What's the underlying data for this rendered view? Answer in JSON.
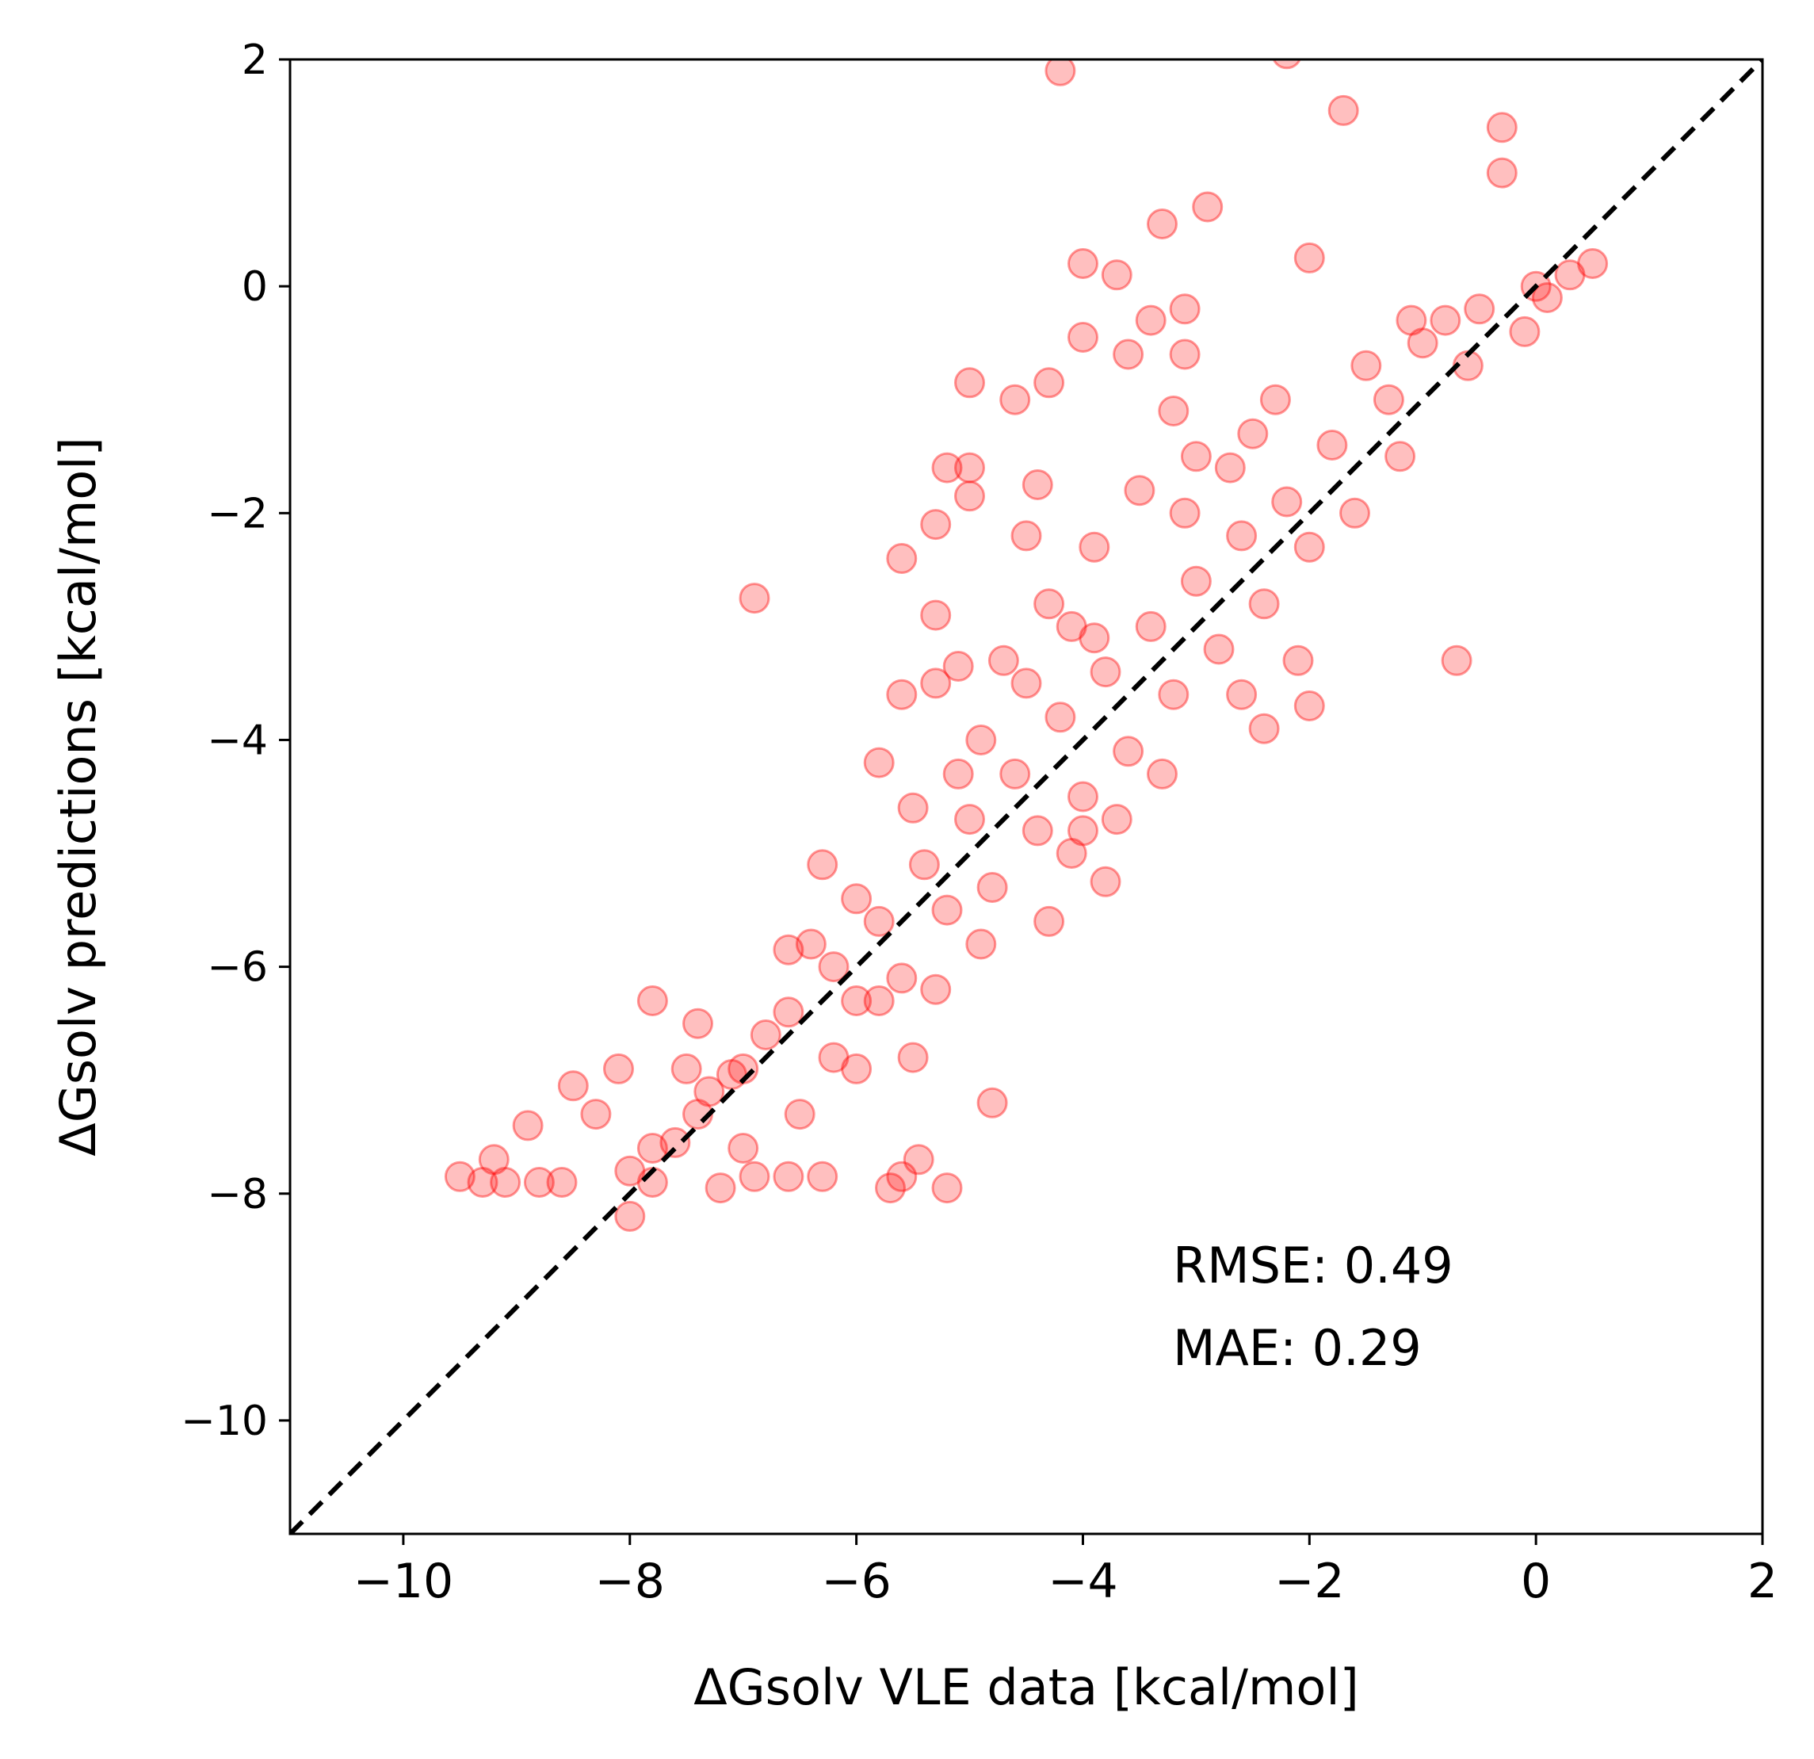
{
  "chart_data": {
    "type": "scatter",
    "title": "",
    "xlabel": "ΔGsolv VLE data [kcal/mol]",
    "ylabel": "ΔGsolv predictions [kcal/mol]",
    "xlim": [
      -11,
      2
    ],
    "ylim": [
      -11,
      2
    ],
    "xticks": [
      -10,
      -8,
      -6,
      -4,
      -2,
      0,
      2
    ],
    "yticks": [
      -10,
      -8,
      -6,
      -4,
      -2,
      0,
      2
    ],
    "xtick_labels": [
      "−10",
      "−8",
      "−6",
      "−4",
      "−2",
      "0",
      "2"
    ],
    "ytick_labels": [
      "−10",
      "−8",
      "−6",
      "−4",
      "−2",
      "0",
      "2"
    ],
    "grid": false,
    "reference_line": {
      "style": "dashed",
      "color": "#000000",
      "from": [
        -11,
        -11
      ],
      "to": [
        2,
        2
      ]
    },
    "marker_color": "#ff0000",
    "marker_alpha": 0.25,
    "annotations": {
      "rmse": "RMSE: 0.49",
      "mae": "MAE: 0.29"
    },
    "series": [
      {
        "name": "predictions",
        "points": [
          [
            -4.2,
            1.9
          ],
          [
            -2.2,
            2.05
          ],
          [
            -1.7,
            1.55
          ],
          [
            -0.3,
            1.4
          ],
          [
            -0.3,
            1.0
          ],
          [
            -3.3,
            0.55
          ],
          [
            -2.9,
            0.7
          ],
          [
            -2.0,
            0.25
          ],
          [
            -4.0,
            0.2
          ],
          [
            -3.7,
            0.1
          ],
          [
            -3.4,
            -0.3
          ],
          [
            -3.1,
            -0.2
          ],
          [
            -4.0,
            -0.45
          ],
          [
            -3.6,
            -0.6
          ],
          [
            -3.1,
            -0.6
          ],
          [
            -5.0,
            -0.85
          ],
          [
            -4.3,
            -0.85
          ],
          [
            -4.6,
            -1.0
          ],
          [
            -3.2,
            -1.1
          ],
          [
            -2.5,
            -1.3
          ],
          [
            -5.2,
            -1.6
          ],
          [
            -5.0,
            -1.6
          ],
          [
            -5.0,
            -1.85
          ],
          [
            -4.4,
            -1.75
          ],
          [
            -5.3,
            -2.1
          ],
          [
            -5.6,
            -2.4
          ],
          [
            -5.3,
            -2.9
          ],
          [
            -6.9,
            -2.75
          ],
          [
            -0.7,
            -3.3
          ],
          [
            -2.0,
            -3.7
          ],
          [
            -2.4,
            -3.9
          ],
          [
            -5.6,
            -3.6
          ],
          [
            -5.3,
            -3.5
          ],
          [
            -5.1,
            -3.35
          ],
          [
            -5.8,
            -4.2
          ],
          [
            -6.3,
            -5.1
          ],
          [
            -4.3,
            -5.6
          ],
          [
            -3.8,
            -5.25
          ],
          [
            -4.0,
            -4.8
          ],
          [
            -6.6,
            -5.85
          ],
          [
            -5.8,
            -6.3
          ],
          [
            -7.4,
            -6.5
          ],
          [
            -7.8,
            -6.3
          ],
          [
            -7.5,
            -6.9
          ],
          [
            -8.1,
            -6.9
          ],
          [
            -8.5,
            -7.05
          ],
          [
            -8.3,
            -7.3
          ],
          [
            -8.9,
            -7.4
          ],
          [
            -4.8,
            -7.2
          ],
          [
            -6.5,
            -7.3
          ],
          [
            -5.5,
            -6.8
          ],
          [
            -6.0,
            -6.9
          ],
          [
            -6.2,
            -6.8
          ],
          [
            -7.0,
            -7.6
          ],
          [
            -6.9,
            -7.85
          ],
          [
            -6.6,
            -7.85
          ],
          [
            -6.3,
            -7.85
          ],
          [
            -5.6,
            -7.85
          ],
          [
            -5.45,
            -7.7
          ],
          [
            -5.2,
            -7.95
          ],
          [
            -5.7,
            -7.95
          ],
          [
            -7.2,
            -7.95
          ],
          [
            -8.6,
            -7.9
          ],
          [
            -8.8,
            -7.9
          ],
          [
            -9.1,
            -7.9
          ],
          [
            -9.2,
            -7.7
          ],
          [
            -9.5,
            -7.85
          ],
          [
            -9.3,
            -7.9
          ],
          [
            -8.0,
            -8.2
          ],
          [
            -8.0,
            -7.8
          ],
          [
            -7.8,
            -7.9
          ],
          [
            -7.6,
            -7.55
          ],
          [
            -7.3,
            -7.1
          ],
          [
            -7.1,
            -6.95
          ],
          [
            -6.8,
            -6.6
          ],
          [
            0.1,
            -0.1
          ],
          [
            0.3,
            0.1
          ],
          [
            0.5,
            0.2
          ],
          [
            -0.1,
            -0.4
          ],
          [
            0.0,
            0.0
          ],
          [
            -1.0,
            -0.5
          ],
          [
            -1.3,
            -1.0
          ],
          [
            -1.8,
            -1.4
          ],
          [
            -2.2,
            -1.9
          ],
          [
            -2.6,
            -2.2
          ],
          [
            -3.0,
            -2.6
          ],
          [
            -3.4,
            -3.0
          ],
          [
            -3.8,
            -3.4
          ],
          [
            -4.2,
            -3.8
          ],
          [
            -4.6,
            -4.3
          ],
          [
            -5.0,
            -4.7
          ],
          [
            -5.4,
            -5.1
          ],
          [
            -5.8,
            -5.6
          ],
          [
            -6.2,
            -6.0
          ],
          [
            -6.6,
            -6.4
          ],
          [
            -7.0,
            -6.9
          ],
          [
            -7.4,
            -7.3
          ],
          [
            -7.8,
            -7.6
          ],
          [
            -1.2,
            -1.5
          ],
          [
            -1.6,
            -2.0
          ],
          [
            -2.0,
            -2.3
          ],
          [
            -2.4,
            -2.8
          ],
          [
            -2.8,
            -3.2
          ],
          [
            -3.2,
            -3.6
          ],
          [
            -3.6,
            -4.1
          ],
          [
            -4.0,
            -4.5
          ],
          [
            -4.4,
            -4.8
          ],
          [
            -4.8,
            -5.3
          ],
          [
            -5.2,
            -5.5
          ],
          [
            -5.6,
            -6.1
          ],
          [
            -6.0,
            -6.3
          ],
          [
            -3.9,
            -2.3
          ],
          [
            -4.3,
            -2.8
          ],
          [
            -4.7,
            -3.3
          ],
          [
            -3.5,
            -1.8
          ],
          [
            -3.0,
            -1.5
          ],
          [
            -4.5,
            -2.2
          ],
          [
            -2.7,
            -1.6
          ],
          [
            -2.3,
            -1.0
          ],
          [
            -1.5,
            -0.7
          ],
          [
            -0.8,
            -0.3
          ],
          [
            -0.5,
            -0.2
          ],
          [
            -1.1,
            -0.3
          ],
          [
            -0.6,
            -0.7
          ],
          [
            -2.1,
            -3.3
          ],
          [
            -2.6,
            -3.6
          ],
          [
            -3.3,
            -4.3
          ],
          [
            -3.7,
            -4.7
          ],
          [
            -4.1,
            -5.0
          ],
          [
            -4.9,
            -5.8
          ],
          [
            -5.3,
            -6.2
          ],
          [
            -3.1,
            -2.0
          ],
          [
            -4.1,
            -3.0
          ],
          [
            -4.9,
            -4.0
          ],
          [
            -5.5,
            -4.6
          ],
          [
            -6.0,
            -5.4
          ],
          [
            -6.4,
            -5.8
          ],
          [
            -5.1,
            -4.3
          ],
          [
            -4.5,
            -3.5
          ],
          [
            -3.9,
            -3.1
          ]
        ]
      }
    ]
  }
}
